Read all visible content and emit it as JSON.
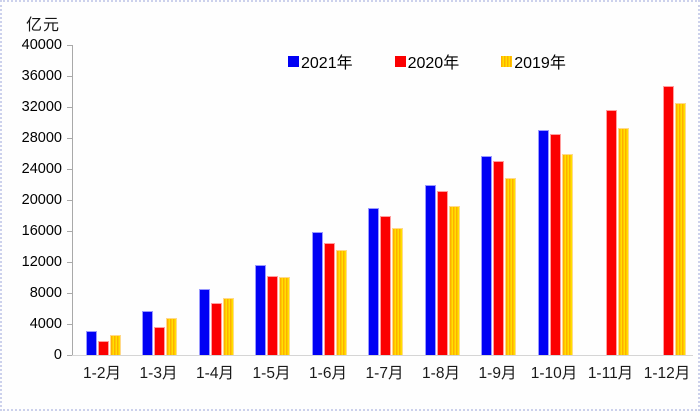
{
  "colors": {
    "series_2021": "#0101f4",
    "series_2020": "#fb0001",
    "series_2019_orange": "#ffaf00",
    "series_2019_yellow_stripe": "#ffe000",
    "axis_line": "#a9a9a9",
    "baseline": "#d5d5d5",
    "frame_border": "#ccd1ec",
    "text": "#000000"
  },
  "chart_data": {
    "type": "bar",
    "title": "",
    "ylabel": "亿元",
    "xlabel": "",
    "ylim": [
      0,
      40000
    ],
    "ytick_step": 4000,
    "grid": false,
    "legend_position": "top-center",
    "categories": [
      "1-2月",
      "1-3月",
      "1-4月",
      "1-5月",
      "1-6月",
      "1-7月",
      "1-8月",
      "1-9月",
      "1-10月",
      "1-11月",
      "1-12月"
    ],
    "series": [
      {
        "name": "2021年",
        "style": "solid-blue",
        "values": [
          3050,
          5650,
          8550,
          11600,
          15850,
          19000,
          21900,
          25650,
          29000,
          null,
          null
        ]
      },
      {
        "name": "2020年",
        "style": "solid-red",
        "values": [
          1750,
          3600,
          6750,
          10150,
          14450,
          17950,
          21150,
          25000,
          28500,
          31650,
          34750
        ]
      },
      {
        "name": "2019年",
        "style": "striped-orange-yellow",
        "values": [
          2600,
          4800,
          7350,
          10100,
          13550,
          16400,
          19200,
          22850,
          26000,
          29300,
          32500
        ]
      }
    ]
  }
}
